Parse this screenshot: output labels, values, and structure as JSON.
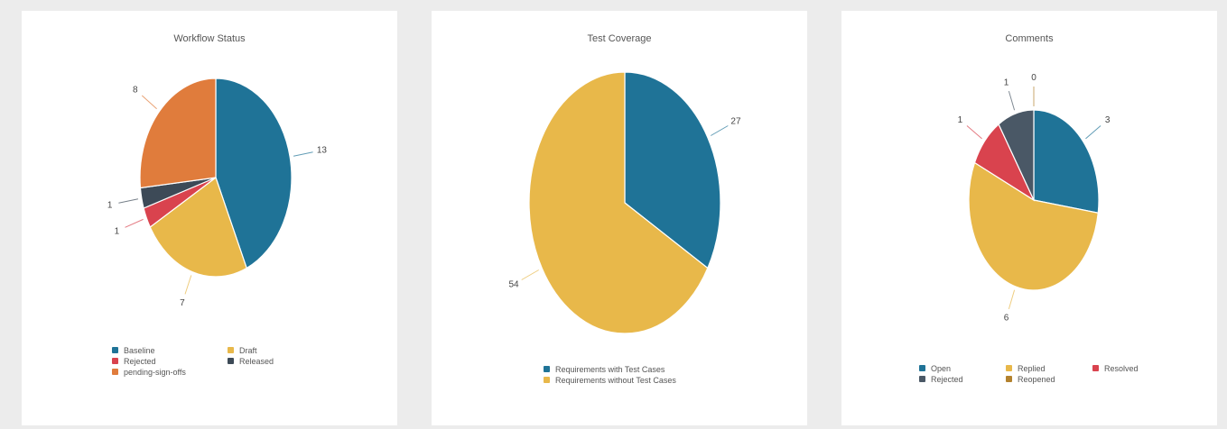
{
  "chart_data": [
    {
      "type": "pie",
      "title": "Workflow Status",
      "slices": [
        {
          "label": "Baseline",
          "value": 13,
          "color": "#1f7397"
        },
        {
          "label": "Draft",
          "value": 7,
          "color": "#e8b84a"
        },
        {
          "label": "Rejected",
          "value": 1,
          "color": "#d9434e"
        },
        {
          "label": "Released",
          "value": 1,
          "color": "#3d4a57"
        },
        {
          "label": "pending-sign-offs",
          "value": 8,
          "color": "#e07c3c"
        }
      ],
      "order": [
        0,
        1,
        2,
        3,
        4
      ],
      "legend": [
        [
          {
            "i": 0
          },
          {
            "i": 1
          }
        ],
        [
          {
            "i": 2
          },
          {
            "i": 3
          }
        ],
        [
          {
            "i": 4
          }
        ]
      ]
    },
    {
      "type": "pie",
      "title": "Test Coverage",
      "slices": [
        {
          "label": "Requirements with Test Cases",
          "value": 27,
          "color": "#1f7397"
        },
        {
          "label": "Requirements without Test Cases",
          "value": 54,
          "color": "#e8b84a"
        }
      ],
      "order": [
        0,
        1
      ],
      "legend": [
        [
          {
            "i": 0
          }
        ],
        [
          {
            "i": 1
          }
        ]
      ]
    },
    {
      "type": "pie",
      "title": "Comments",
      "slices": [
        {
          "label": "Open",
          "value": 3,
          "color": "#1f7397"
        },
        {
          "label": "Replied",
          "value": 6,
          "color": "#e8b84a"
        },
        {
          "label": "Resolved",
          "value": 1,
          "color": "#d9434e"
        },
        {
          "label": "Rejected",
          "value": 1,
          "color": "#4a5866"
        },
        {
          "label": "Reopened",
          "value": 0,
          "color": "#b3822e"
        }
      ],
      "order": [
        0,
        1,
        2,
        3,
        4
      ],
      "legend": [
        [
          {
            "i": 0
          },
          {
            "i": 1
          },
          {
            "i": 2
          }
        ],
        [
          {
            "i": 3
          },
          {
            "i": 4
          }
        ]
      ]
    }
  ]
}
